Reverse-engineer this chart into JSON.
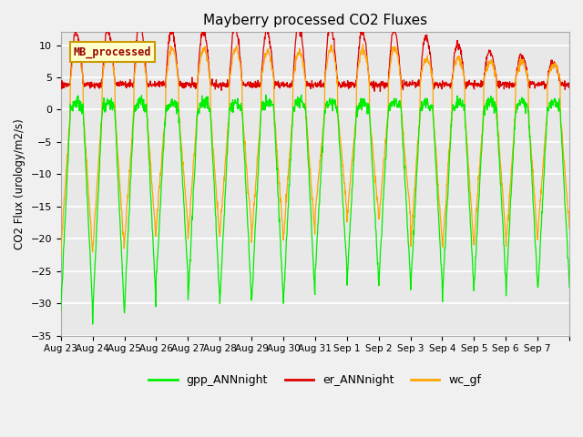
{
  "title": "Mayberry processed CO2 Fluxes",
  "ylabel": "CO2 Flux (urology/m2/s)",
  "ylim": [
    -35,
    12
  ],
  "yticks": [
    -35,
    -30,
    -25,
    -20,
    -15,
    -10,
    -5,
    0,
    5,
    10
  ],
  "plot_bg_color": "#e8e8e8",
  "grid_color": "#ffffff",
  "line_colors": {
    "gpp": "#00ee00",
    "er": "#dd0000",
    "wc": "#ffa500"
  },
  "legend_label": "MB_processed",
  "legend_box_facecolor": "#ffffcc",
  "legend_box_edgecolor": "#cc9900",
  "legend_text_color": "#990000",
  "n_days": 16,
  "ppd": 96,
  "x_tick_labels": [
    "Aug 23",
    "Aug 24",
    "Aug 25",
    "Aug 26",
    "Aug 27",
    "Aug 28",
    "Aug 29",
    "Aug 30",
    "Aug 31",
    "Sep 1",
    "Sep 2",
    "Sep 3",
    "Sep 4",
    "Sep 5",
    "Sep 6",
    "Sep 7"
  ]
}
